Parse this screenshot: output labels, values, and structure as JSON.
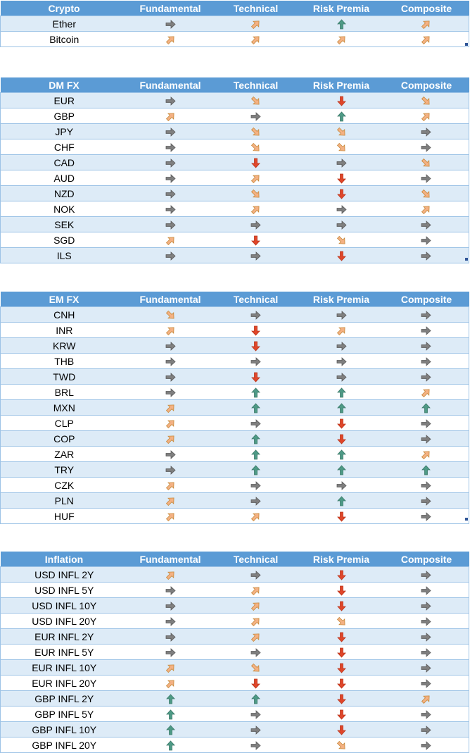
{
  "columns": [
    "Fundamental",
    "Technical",
    "Risk Premia",
    "Composite"
  ],
  "colors": {
    "header_bg": "#5b9bd5",
    "band_bg": "#ddebf7",
    "right": "#7f7f7f",
    "up_right": "#f4b183",
    "down_right": "#f4b183",
    "up": "#4e9a86",
    "down": "#e0462a"
  },
  "sections": [
    {
      "title": "Crypto",
      "rows": [
        {
          "name": "Ether",
          "signals": [
            "right",
            "up-right",
            "up",
            "up-right"
          ]
        },
        {
          "name": "Bitcoin",
          "signals": [
            "up-right",
            "up-right",
            "up-right",
            "up-right"
          ]
        }
      ]
    },
    {
      "title": "DM FX",
      "rows": [
        {
          "name": "EUR",
          "signals": [
            "right",
            "down-right",
            "down",
            "down-right"
          ]
        },
        {
          "name": "GBP",
          "signals": [
            "up-right",
            "right",
            "up",
            "up-right"
          ]
        },
        {
          "name": "JPY",
          "signals": [
            "right",
            "down-right",
            "down-right",
            "right"
          ]
        },
        {
          "name": "CHF",
          "signals": [
            "right",
            "down-right",
            "down-right",
            "right"
          ]
        },
        {
          "name": "CAD",
          "signals": [
            "right",
            "down",
            "right",
            "down-right"
          ]
        },
        {
          "name": "AUD",
          "signals": [
            "right",
            "up-right",
            "down",
            "right"
          ]
        },
        {
          "name": "NZD",
          "signals": [
            "right",
            "down-right",
            "down",
            "down-right"
          ]
        },
        {
          "name": "NOK",
          "signals": [
            "right",
            "up-right",
            "right",
            "up-right"
          ]
        },
        {
          "name": "SEK",
          "signals": [
            "right",
            "right",
            "right",
            "right"
          ]
        },
        {
          "name": "SGD",
          "signals": [
            "up-right",
            "down",
            "down-right",
            "right"
          ]
        },
        {
          "name": "ILS",
          "signals": [
            "right",
            "right",
            "down",
            "right"
          ]
        }
      ]
    },
    {
      "title": "EM FX",
      "rows": [
        {
          "name": "CNH",
          "signals": [
            "down-right",
            "right",
            "right",
            "right"
          ]
        },
        {
          "name": "INR",
          "signals": [
            "up-right",
            "down",
            "up-right",
            "right"
          ]
        },
        {
          "name": "KRW",
          "signals": [
            "right",
            "down",
            "right",
            "right"
          ]
        },
        {
          "name": "THB",
          "signals": [
            "right",
            "right",
            "right",
            "right"
          ]
        },
        {
          "name": "TWD",
          "signals": [
            "right",
            "down",
            "right",
            "right"
          ]
        },
        {
          "name": "BRL",
          "signals": [
            "right",
            "up",
            "up",
            "up-right"
          ]
        },
        {
          "name": "MXN",
          "signals": [
            "up-right",
            "up",
            "up",
            "up"
          ]
        },
        {
          "name": "CLP",
          "signals": [
            "up-right",
            "right",
            "down",
            "right"
          ]
        },
        {
          "name": "COP",
          "signals": [
            "up-right",
            "up",
            "down",
            "right"
          ]
        },
        {
          "name": "ZAR",
          "signals": [
            "right",
            "up",
            "up",
            "up-right"
          ]
        },
        {
          "name": "TRY",
          "signals": [
            "right",
            "up",
            "up",
            "up"
          ]
        },
        {
          "name": "CZK",
          "signals": [
            "up-right",
            "right",
            "right",
            "right"
          ]
        },
        {
          "name": "PLN",
          "signals": [
            "up-right",
            "right",
            "up",
            "right"
          ]
        },
        {
          "name": "HUF",
          "signals": [
            "up-right",
            "up-right",
            "down",
            "right"
          ]
        }
      ]
    },
    {
      "title": "Inflation",
      "rows": [
        {
          "name": "USD INFL 2Y",
          "signals": [
            "up-right",
            "right",
            "down",
            "right"
          ]
        },
        {
          "name": "USD INFL 5Y",
          "signals": [
            "right",
            "up-right",
            "down",
            "right"
          ]
        },
        {
          "name": "USD INFL 10Y",
          "signals": [
            "right",
            "up-right",
            "down",
            "right"
          ]
        },
        {
          "name": "USD INFL 20Y",
          "signals": [
            "right",
            "up-right",
            "down-right",
            "right"
          ]
        },
        {
          "name": "EUR INFL 2Y",
          "signals": [
            "right",
            "up-right",
            "down",
            "right"
          ]
        },
        {
          "name": "EUR INFL 5Y",
          "signals": [
            "right",
            "right",
            "down",
            "right"
          ]
        },
        {
          "name": "EUR INFL 10Y",
          "signals": [
            "up-right",
            "down-right",
            "down",
            "right"
          ]
        },
        {
          "name": "EUR INFL 20Y",
          "signals": [
            "up-right",
            "down",
            "down",
            "right"
          ]
        },
        {
          "name": "GBP INFL 2Y",
          "signals": [
            "up",
            "up",
            "down",
            "up-right"
          ]
        },
        {
          "name": "GBP INFL 5Y",
          "signals": [
            "up",
            "right",
            "down",
            "right"
          ]
        },
        {
          "name": "GBP INFL 10Y",
          "signals": [
            "up",
            "right",
            "down",
            "right"
          ]
        },
        {
          "name": "GBP INFL 20Y",
          "signals": [
            "up",
            "right",
            "down-right",
            "right"
          ]
        }
      ]
    }
  ]
}
